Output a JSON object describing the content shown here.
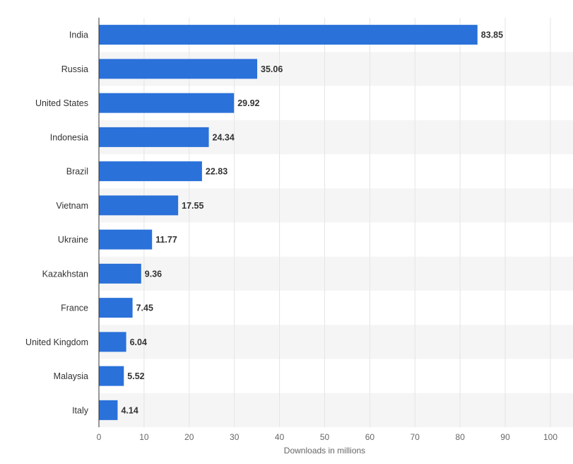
{
  "chart_data": {
    "type": "bar",
    "orientation": "horizontal",
    "categories": [
      "India",
      "Russia",
      "United States",
      "Indonesia",
      "Brazil",
      "Vietnam",
      "Ukraine",
      "Kazakhstan",
      "France",
      "United Kingdom",
      "Malaysia",
      "Italy"
    ],
    "values": [
      83.85,
      35.06,
      29.92,
      24.34,
      22.83,
      17.55,
      11.77,
      9.36,
      7.45,
      6.04,
      5.52,
      4.14
    ],
    "value_labels": [
      "83.85",
      "35.06",
      "29.92",
      "24.34",
      "22.83",
      "17.55",
      "11.77",
      "9.36",
      "7.45",
      "6.04",
      "5.52",
      "4.14"
    ],
    "xlabel": "Downloads in millions",
    "ylabel": "",
    "xlim": [
      0,
      100
    ],
    "xticks": [
      "0",
      "10",
      "20",
      "30",
      "40",
      "50",
      "60",
      "70",
      "80",
      "90",
      "100"
    ],
    "grid": true,
    "legend": "none",
    "colors": {
      "bar": "#2A71D9",
      "band": "#F5F5F5",
      "grid": "#E4E4E4",
      "axis": "#333333"
    }
  }
}
